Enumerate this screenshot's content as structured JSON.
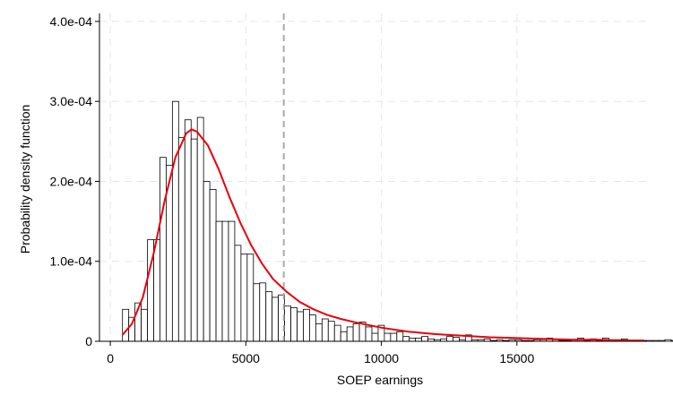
{
  "chart_data": {
    "type": "bar",
    "xlabel": "SOEP earnings",
    "ylabel": "Probability density function",
    "xlim": [
      -400,
      19800
    ],
    "ylim": [
      0,
      0.00041
    ],
    "x_ticks": [
      0,
      5000,
      10000,
      15000
    ],
    "x_tick_labels": [
      "0",
      "5000",
      "10000",
      "15000"
    ],
    "y_ticks": [
      0,
      0.0001,
      0.0002,
      0.0003,
      0.0004
    ],
    "y_tick_labels": [
      "0",
      "1.0e-04",
      "2.0e-04",
      "3.0e-04",
      "4.0e-04"
    ],
    "grid": true,
    "reference_line_x": 6400,
    "histogram": {
      "bin_start": 450,
      "bin_width": 230,
      "densities": [
        4e-05,
        3e-05,
        4.8e-05,
        4e-05,
        0.000127,
        0.000127,
        0.00023,
        0.00022,
        0.0003,
        0.000255,
        0.000277,
        0.000253,
        0.00028,
        0.0002,
        0.00019,
        0.00015,
        0.00015,
        0.00015,
        0.00012,
        0.000109,
        0.000109,
        7.2e-05,
        7.3e-05,
        6.2e-05,
        5.5e-05,
        5.8e-05,
        4.4e-05,
        4.2e-05,
        3.7e-05,
        4e-05,
        3.3e-05,
        2.2e-05,
        2.8e-05,
        2.5e-05,
        2e-05,
        1.2e-05,
        1.8e-05,
        2.2e-05,
        2.4e-05,
        1.8e-05,
        1e-05,
        2e-05,
        1e-05,
        1e-05,
        1.2e-05,
        6e-06,
        4e-06,
        4e-06,
        6e-06,
        3e-06,
        2e-06,
        3e-06,
        6e-06,
        5e-06,
        2e-06,
        8e-06,
        2e-06,
        2e-06,
        3e-06,
        1e-06,
        2e-06,
        1e-06,
        2e-06,
        2e-06,
        1e-06,
        1e-06,
        2e-06,
        2e-06,
        4e-06,
        2e-06,
        1e-06,
        1e-06,
        2e-06,
        4e-06,
        1e-06,
        3e-06,
        1e-06,
        4e-06,
        1e-06,
        2e-06,
        3e-06,
        1e-06,
        1e-06,
        1e-06,
        1e-06,
        1e-06,
        1e-06,
        2e-06,
        1e-06,
        1e-06,
        1e-06,
        1e-06,
        1e-06,
        1e-06,
        1e-06,
        1e-06
      ],
      "fill_color": "#ffffff",
      "stroke_color": "#000000"
    },
    "fitted_curve": {
      "x": [
        450,
        800,
        1200,
        1600,
        2000,
        2400,
        2800,
        3000,
        3200,
        3600,
        4000,
        4400,
        4800,
        5200,
        5600,
        6000,
        6500,
        7000,
        7500,
        8000,
        8500,
        9000,
        10000,
        11000,
        12000,
        13000,
        14000,
        15000,
        16000,
        17000,
        18000,
        19000,
        19700
      ],
      "y": [
        8e-06,
        2.2e-05,
        5.5e-05,
        0.00011,
        0.000175,
        0.00023,
        0.00026,
        0.000265,
        0.000262,
        0.000245,
        0.000215,
        0.00018,
        0.000148,
        0.00012,
        9.7e-05,
        7.8e-05,
        6.2e-05,
        4.9e-05,
        4e-05,
        3.3e-05,
        2.8e-05,
        2.4e-05,
        1.7e-05,
        1.2e-05,
        9e-06,
        7e-06,
        5e-06,
        4e-06,
        3e-06,
        2e-06,
        2e-06,
        1e-06,
        1e-06
      ],
      "color": "#e8000b"
    }
  }
}
